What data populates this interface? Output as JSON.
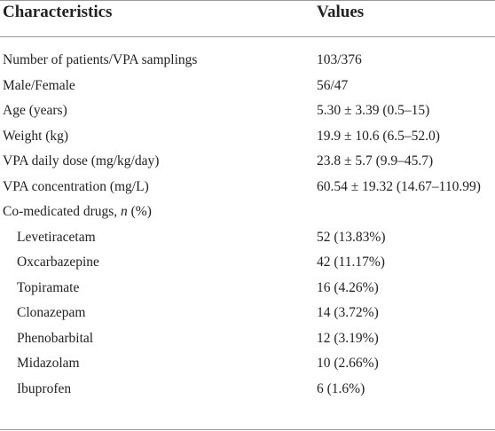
{
  "table": {
    "header": [
      "Characteristics",
      "Values"
    ],
    "rows": [
      [
        "Number of patients/VPA samplings",
        "103/376"
      ],
      [
        "Male/Female",
        "56/47"
      ],
      [
        "Age (years)",
        "5.30 ± 3.39 (0.5–15)"
      ],
      [
        "Weight (kg)",
        "19.9 ± 10.6 (6.5–52.0)"
      ],
      [
        "VPA daily dose (mg/kg/day)",
        "23.8 ± 5.7 (9.9–45.7)"
      ],
      [
        "VPA concentration (mg/L)",
        "60.54 ± 19.32 (14.67–110.99)"
      ]
    ],
    "group": {
      "label": [
        "Co-medicated drugs, ",
        "n",
        " (%)"
      ],
      "rows": [
        [
          "Levetiracetam",
          "52 (13.83%)"
        ],
        [
          "Oxcarbazepine",
          "42 (11.17%)"
        ],
        [
          "Topiramate",
          "16 (4.26%)"
        ],
        [
          "Clonazepam",
          "14 (3.72%)"
        ],
        [
          "Phenobarbital",
          "12 (3.19%)"
        ],
        [
          "Midazolam",
          "10 (2.66%)"
        ],
        [
          "Ibuprofen",
          "6 (1.6%)"
        ]
      ]
    }
  }
}
